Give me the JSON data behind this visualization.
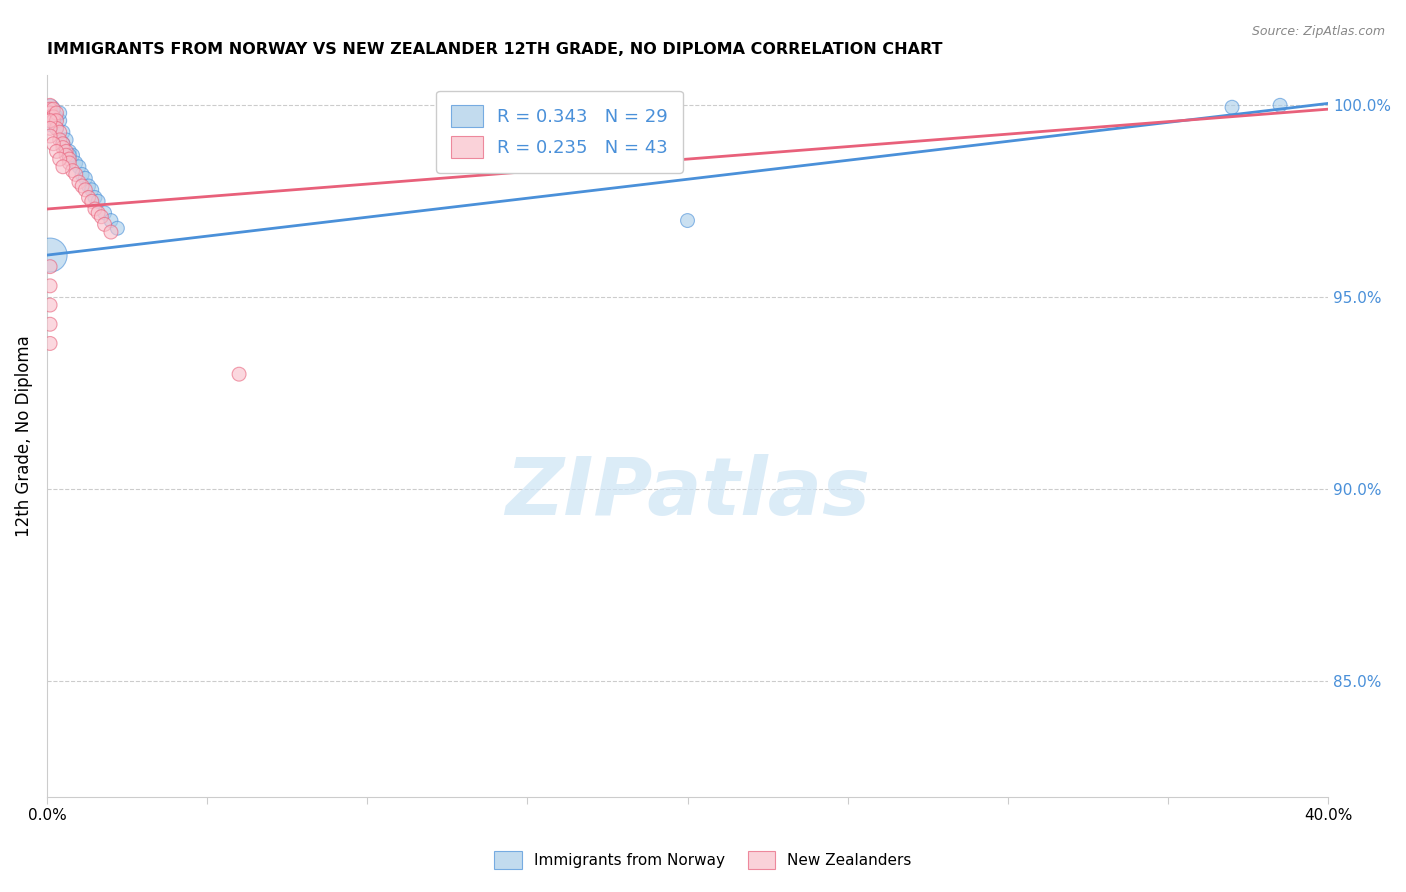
{
  "title": "IMMIGRANTS FROM NORWAY VS NEW ZEALANDER 12TH GRADE, NO DIPLOMA CORRELATION CHART",
  "source": "Source: ZipAtlas.com",
  "ylabel_left": "12th Grade, No Diploma",
  "xlim": [
    0.0,
    0.4
  ],
  "ylim": [
    0.82,
    1.008
  ],
  "xticks": [
    0.0,
    0.05,
    0.1,
    0.15,
    0.2,
    0.25,
    0.3,
    0.35,
    0.4
  ],
  "xticklabels": [
    "0.0%",
    "",
    "",
    "",
    "",
    "",
    "",
    "",
    "40.0%"
  ],
  "yticks_right": [
    0.85,
    0.9,
    0.95,
    1.0
  ],
  "ytick_labels_right": [
    "85.0%",
    "90.0%",
    "95.0%",
    "100.0%"
  ],
  "legend_blue_r": "R = 0.343",
  "legend_blue_n": "N = 29",
  "legend_pink_r": "R = 0.235",
  "legend_pink_n": "N = 43",
  "blue_color": "#a8cce8",
  "pink_color": "#f9bfca",
  "blue_line_color": "#4a90d9",
  "pink_line_color": "#e8607a",
  "watermark_color": "#cde4f5",
  "watermark_text": "ZIPatlas",
  "blue_trend": [
    0.0,
    0.961,
    0.4,
    1.0005
  ],
  "pink_trend": [
    0.0,
    0.973,
    0.4,
    0.999
  ],
  "blue_scatter_x": [
    0.001,
    0.002,
    0.002,
    0.003,
    0.004,
    0.004,
    0.005,
    0.006,
    0.007,
    0.008,
    0.009,
    0.01,
    0.011,
    0.012,
    0.013,
    0.014,
    0.015,
    0.016,
    0.018,
    0.02,
    0.001,
    0.003,
    0.005,
    0.007,
    0.001,
    0.022,
    0.2,
    0.37,
    0.385
  ],
  "blue_scatter_y": [
    0.999,
    0.998,
    0.9965,
    0.997,
    0.996,
    0.998,
    0.993,
    0.991,
    0.988,
    0.987,
    0.985,
    0.984,
    0.982,
    0.981,
    0.979,
    0.978,
    0.976,
    0.975,
    0.972,
    0.97,
    0.995,
    0.994,
    0.99,
    0.987,
    0.961,
    0.968,
    0.97,
    0.9995,
    1.0
  ],
  "blue_scatter_size": [
    200,
    100,
    100,
    100,
    100,
    100,
    100,
    100,
    100,
    100,
    100,
    100,
    100,
    100,
    100,
    100,
    100,
    100,
    100,
    100,
    100,
    100,
    100,
    100,
    600,
    100,
    100,
    100,
    100
  ],
  "pink_scatter_x": [
    0.001,
    0.001,
    0.001,
    0.001,
    0.002,
    0.002,
    0.002,
    0.003,
    0.003,
    0.003,
    0.004,
    0.004,
    0.005,
    0.005,
    0.006,
    0.006,
    0.007,
    0.007,
    0.008,
    0.009,
    0.01,
    0.011,
    0.012,
    0.013,
    0.014,
    0.015,
    0.016,
    0.017,
    0.018,
    0.02,
    0.001,
    0.001,
    0.001,
    0.002,
    0.003,
    0.004,
    0.005,
    0.06,
    0.001,
    0.001,
    0.001,
    0.001,
    0.001
  ],
  "pink_scatter_y": [
    1.0,
    0.999,
    0.998,
    0.997,
    0.999,
    0.997,
    0.996,
    0.998,
    0.996,
    0.994,
    0.993,
    0.991,
    0.99,
    0.989,
    0.988,
    0.987,
    0.986,
    0.985,
    0.983,
    0.982,
    0.98,
    0.979,
    0.978,
    0.976,
    0.975,
    0.973,
    0.972,
    0.971,
    0.969,
    0.967,
    0.996,
    0.994,
    0.992,
    0.99,
    0.988,
    0.986,
    0.984,
    0.93,
    0.958,
    0.953,
    0.948,
    0.943,
    0.938
  ],
  "pink_scatter_size": [
    100,
    100,
    100,
    100,
    100,
    100,
    100,
    100,
    100,
    100,
    100,
    100,
    100,
    100,
    100,
    100,
    100,
    100,
    100,
    100,
    100,
    100,
    100,
    100,
    100,
    100,
    100,
    100,
    100,
    100,
    100,
    100,
    100,
    100,
    100,
    100,
    100,
    100,
    100,
    100,
    100,
    100,
    100
  ]
}
